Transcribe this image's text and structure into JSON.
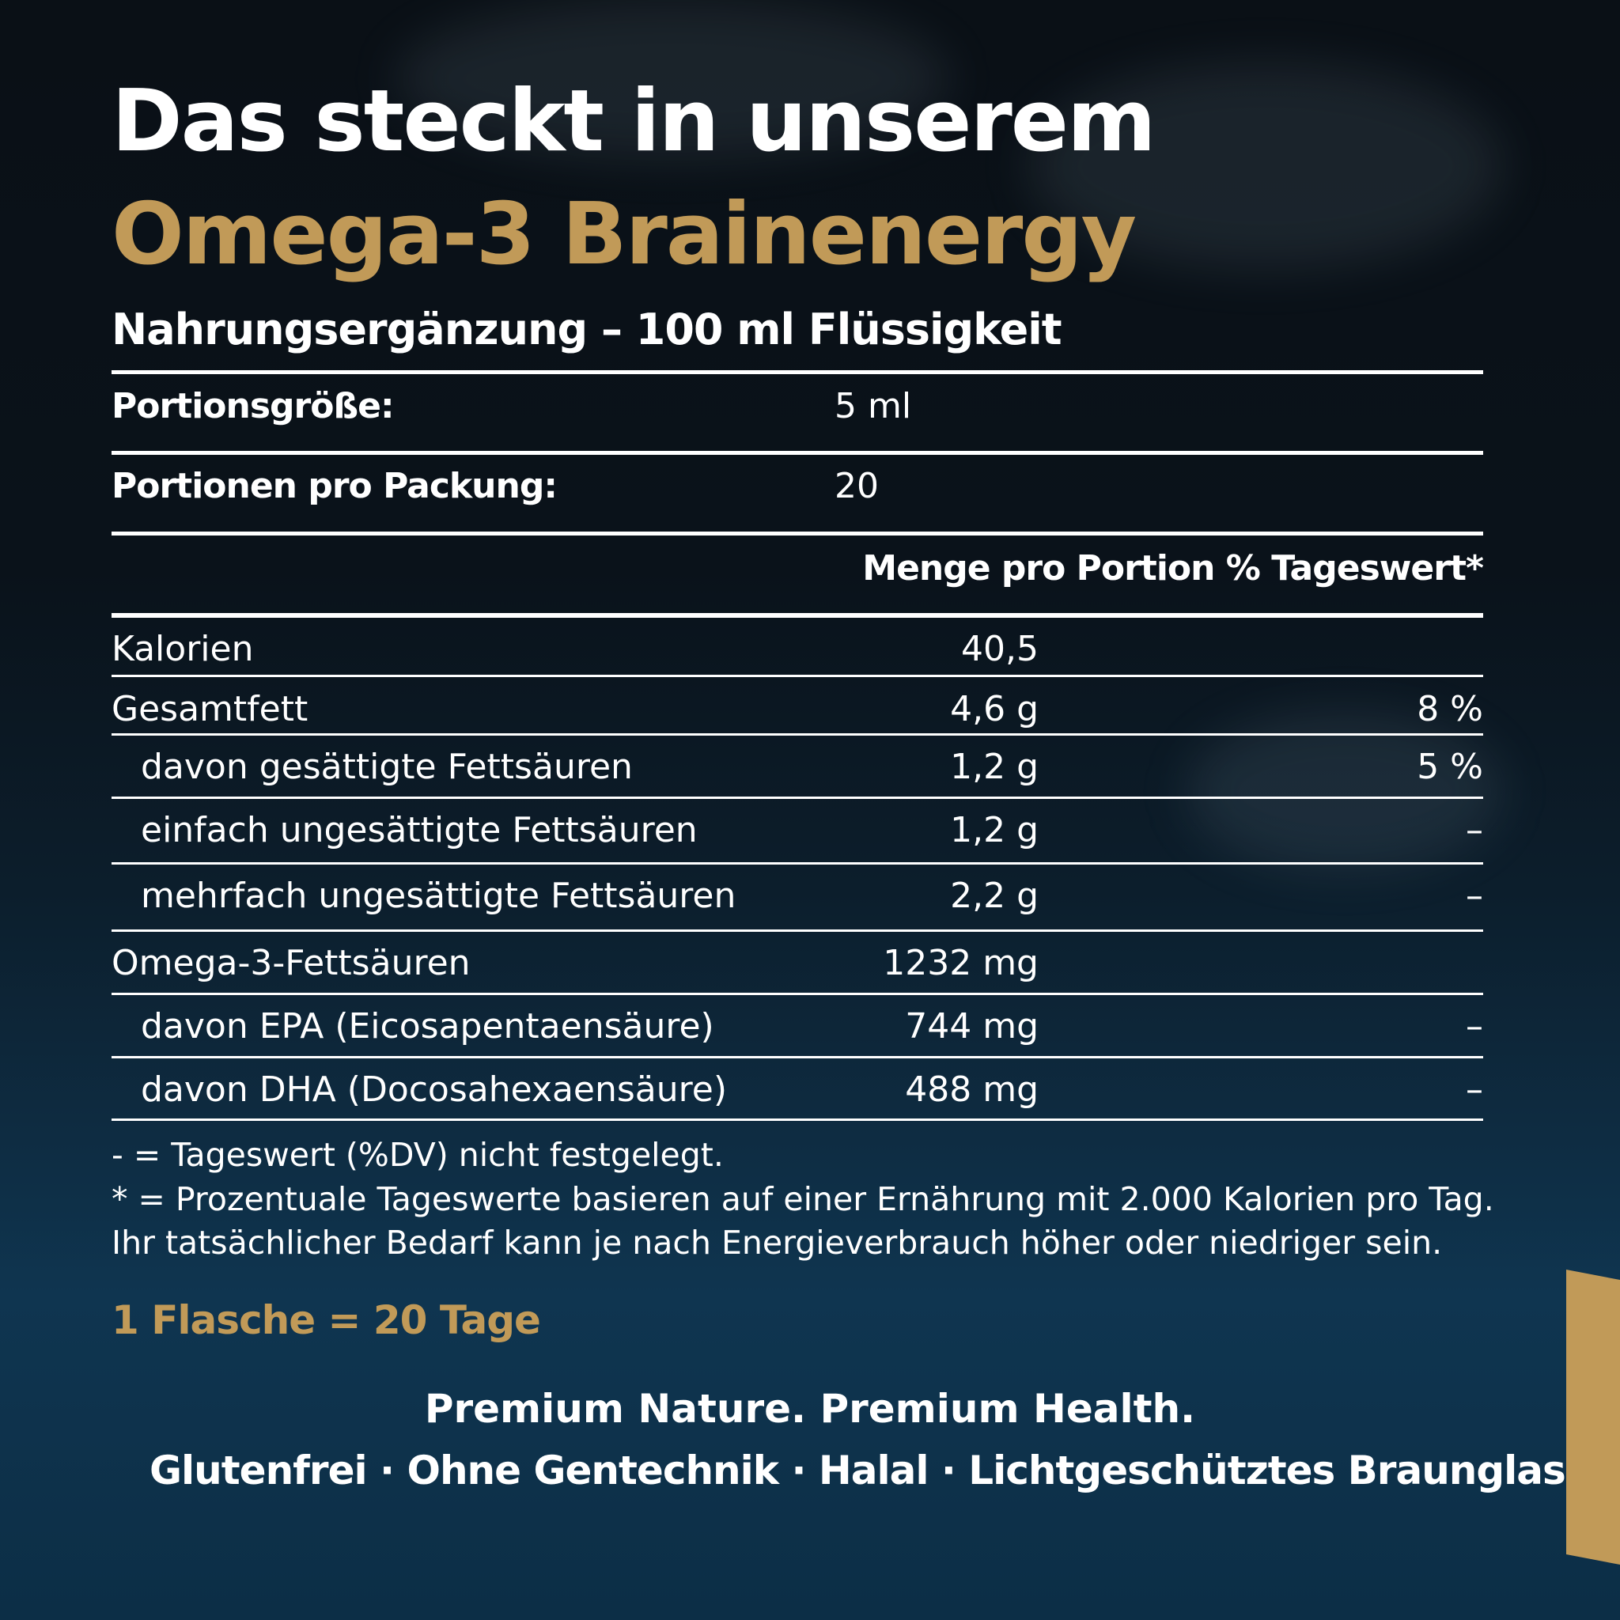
{
  "header": {
    "title_line1": "Das steckt in unserem",
    "title_line2": "Omega-3 Brainenergy",
    "subtitle": "Nahrungsergänzung – 100 ml Flüssigkeit"
  },
  "info": [
    {
      "label": "Portionsgröße:",
      "value": "5 ml"
    },
    {
      "label": "Portionen pro Packung:",
      "value": "20"
    }
  ],
  "table": {
    "header": "Menge pro Portion % Tageswert*",
    "rows": [
      {
        "name": "Kalorien",
        "amount": "40,5",
        "dv": ""
      },
      {
        "name": "Gesamtfett",
        "amount": "4,6 g",
        "dv": "8 %"
      },
      {
        "name": "davon gesättigte Fettsäuren",
        "amount": "1,2 g",
        "dv": "5 %"
      },
      {
        "name": "einfach ungesättigte Fettsäuren",
        "amount": "1,2 g",
        "dv": "–"
      },
      {
        "name": "mehrfach ungesättigte Fettsäuren",
        "amount": "2,2 g",
        "dv": "–"
      },
      {
        "name": "Omega-3-Fettsäuren",
        "amount": "1232 mg",
        "dv": ""
      },
      {
        "name": "davon EPA (Eicosapentaensäure)",
        "amount": "744 mg",
        "dv": "–"
      },
      {
        "name": "davon DHA (Docosahexaensäure)",
        "amount": "488 mg",
        "dv": "–"
      }
    ]
  },
  "notes": [
    "- = Tageswert (%DV) nicht festgelegt.",
    "* = Prozentuale Tageswerte basieren auf einer Ernährung mit 2.000 Kalorien pro Tag.",
    "Ihr tatsächlicher Bedarf kann je nach Energieverbrauch höher oder niedriger sein."
  ],
  "bottle_note": "1 Flasche = 20 Tage",
  "tagline": "Premium Nature. Premium Health.",
  "features": "Glutenfrei · Ohne Gentechnik · Halal · Lichtgeschütztes Braunglas",
  "colors": {
    "gold": "#c19a58",
    "background_top": "#0a1016",
    "background_bottom": "#0f3550"
  }
}
